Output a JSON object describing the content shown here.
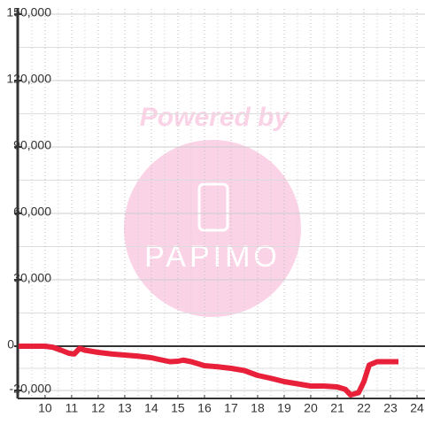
{
  "chart_data": {
    "type": "line",
    "x": [
      9,
      10,
      10.3,
      10.6,
      10.9,
      11.1,
      11.3,
      11.5,
      12,
      12.5,
      13,
      13.5,
      14,
      14.3,
      14.7,
      15,
      15.2,
      15.5,
      16,
      16.5,
      17,
      17.5,
      18,
      18.5,
      19,
      19.5,
      20,
      20.5,
      21,
      21.3,
      21.5,
      21.8,
      22,
      22.2,
      22.5,
      23,
      23.3
    ],
    "series": [
      {
        "color": "#e8203a",
        "values": [
          0,
          0,
          -500,
          -1800,
          -3200,
          -3500,
          -1000,
          -1800,
          -2800,
          -3500,
          -4000,
          -4500,
          -5200,
          -6000,
          -7000,
          -6800,
          -6300,
          -7000,
          -8800,
          -9300,
          -10000,
          -11000,
          -13200,
          -14500,
          -16000,
          -17000,
          -18000,
          -18000,
          -18400,
          -19500,
          -22000,
          -21000,
          -16000,
          -8500,
          -7000,
          -7000,
          -7000
        ]
      }
    ],
    "xlim": [
      8.97,
      24.3
    ],
    "xticks": [
      10,
      11,
      12,
      13,
      14,
      15,
      16,
      17,
      18,
      19,
      20,
      21,
      22,
      23,
      24
    ],
    "x_minor_ticks": [
      9.5,
      10.5,
      11.5,
      12.5,
      13.5,
      14.5,
      15.5,
      16.5,
      17.5,
      18.5,
      19.5,
      20.5,
      21.5,
      22.5,
      23.5
    ],
    "ylim": [
      -23600,
      152400
    ],
    "yticks": [
      {
        "value": -20000,
        "label": "-20,000"
      },
      0,
      {
        "value": 30000,
        "label": "30,000"
      },
      {
        "value": 60000,
        "label": "60,000"
      },
      {
        "value": 90000,
        "label": "90,000"
      },
      {
        "value": 120000,
        "label": "120,000"
      },
      {
        "value": 150000,
        "label": "150,000"
      }
    ],
    "y_minor_ticks": [
      -10000,
      15000,
      45000,
      75000,
      105000,
      135000
    ],
    "grid": true,
    "watermark": {
      "top": "Powered by",
      "logo": "PAPIMO"
    }
  }
}
